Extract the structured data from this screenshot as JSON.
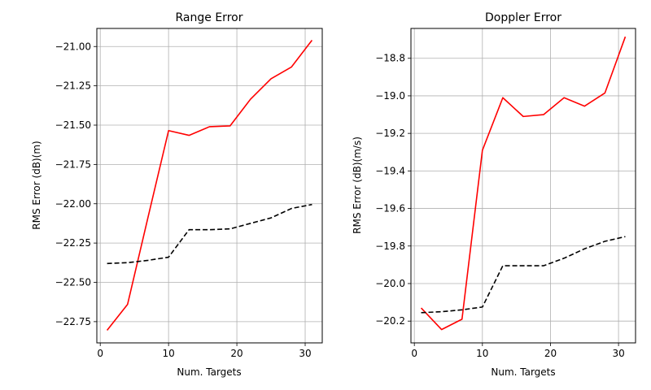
{
  "chart_data": [
    {
      "type": "line",
      "title": "Range Error",
      "xlabel": "Num. Targets",
      "ylabel": "RMS Error (dB)(m)",
      "xlim": [
        -0.5,
        32.5
      ],
      "ylim": [
        -22.885,
        -20.885
      ],
      "xticks": [
        0,
        10,
        20,
        30
      ],
      "xtick_labels": [
        "0",
        "10",
        "20",
        "30"
      ],
      "yticks": [
        -22.75,
        -22.5,
        -22.25,
        -22.0,
        -21.75,
        -21.5,
        -21.25,
        -21.0
      ],
      "ytick_labels": [
        "−22.75",
        "−22.50",
        "−22.25",
        "−22.00",
        "−21.75",
        "−21.50",
        "−21.25",
        "−21.00"
      ],
      "grid": true,
      "x": [
        1,
        4,
        7,
        10,
        13,
        16,
        19,
        22,
        25,
        28,
        31
      ],
      "series": [
        {
          "color": "#ff0000",
          "style": "solid",
          "values": [
            -22.805,
            -22.64,
            -22.085,
            -21.535,
            -21.565,
            -21.51,
            -21.505,
            -21.335,
            -21.205,
            -21.13,
            -20.96
          ]
        },
        {
          "color": "#000000",
          "style": "dashed",
          "values": [
            -22.38,
            -22.375,
            -22.36,
            -22.34,
            -22.165,
            -22.165,
            -22.16,
            -22.125,
            -22.09,
            -22.03,
            -22.005
          ]
        }
      ]
    },
    {
      "type": "line",
      "title": "Doppler Error",
      "xlabel": "Num. Targets",
      "ylabel": "RMS Error (dB)(m/s)",
      "xlim": [
        -0.5,
        32.5
      ],
      "ylim": [
        -20.316,
        -18.641
      ],
      "xticks": [
        0,
        10,
        20,
        30
      ],
      "xtick_labels": [
        "0",
        "10",
        "20",
        "30"
      ],
      "yticks": [
        -20.2,
        -20.0,
        -19.8,
        -19.6,
        -19.4,
        -19.2,
        -19.0,
        -18.8
      ],
      "ytick_labels": [
        "−20.2",
        "−20.0",
        "−19.8",
        "−19.6",
        "−19.4",
        "−19.2",
        "−19.0",
        "−18.8"
      ],
      "grid": true,
      "x": [
        1,
        4,
        7,
        10,
        13,
        16,
        19,
        22,
        25,
        28,
        31
      ],
      "series": [
        {
          "color": "#ff0000",
          "style": "solid",
          "values": [
            -20.13,
            -20.245,
            -20.19,
            -19.29,
            -19.01,
            -19.11,
            -19.1,
            -19.01,
            -19.055,
            -18.985,
            -18.685
          ]
        },
        {
          "color": "#000000",
          "style": "dashed",
          "values": [
            -20.155,
            -20.15,
            -20.14,
            -20.125,
            -19.905,
            -19.905,
            -19.905,
            -19.865,
            -19.815,
            -19.775,
            -19.75
          ]
        }
      ]
    }
  ]
}
